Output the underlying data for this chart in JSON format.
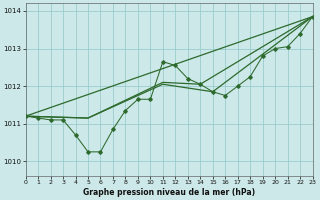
{
  "title": "Graphe pression niveau de la mer (hPa)",
  "bg_color": "#cce8e8",
  "grid_color": "#99cccc",
  "line_color": "#2d6a2d",
  "xlim": [
    0,
    23
  ],
  "ylim": [
    1009.6,
    1014.2
  ],
  "yticks": [
    1010,
    1011,
    1012,
    1013,
    1014
  ],
  "xticks": [
    0,
    1,
    2,
    3,
    4,
    5,
    6,
    7,
    8,
    9,
    10,
    11,
    12,
    13,
    14,
    15,
    16,
    17,
    18,
    19,
    20,
    21,
    22,
    23
  ],
  "series_x": [
    0,
    1,
    2,
    3,
    4,
    5,
    6,
    7,
    8,
    9,
    10,
    11,
    12,
    13,
    14,
    15,
    16,
    17,
    18,
    19,
    20,
    21,
    22,
    23
  ],
  "series1_y": [
    1011.2,
    1011.15,
    1011.1,
    1011.1,
    1010.7,
    1010.25,
    1010.25,
    1010.85,
    1011.35,
    1011.65,
    1011.65,
    1012.65,
    1012.55,
    1012.2,
    1012.05,
    1011.85,
    1011.75,
    1012.0,
    1012.25,
    1012.8,
    1013.0,
    1013.05,
    1013.4,
    1013.85
  ],
  "trend1_x": [
    0,
    23
  ],
  "trend1_y": [
    1011.2,
    1013.85
  ],
  "trend2_x": [
    0,
    5,
    11,
    14,
    23
  ],
  "trend2_y": [
    1011.2,
    1011.15,
    1012.1,
    1012.05,
    1013.85
  ],
  "trend3_x": [
    0,
    5,
    11,
    15,
    23
  ],
  "trend3_y": [
    1011.2,
    1011.15,
    1012.05,
    1011.85,
    1013.85
  ]
}
